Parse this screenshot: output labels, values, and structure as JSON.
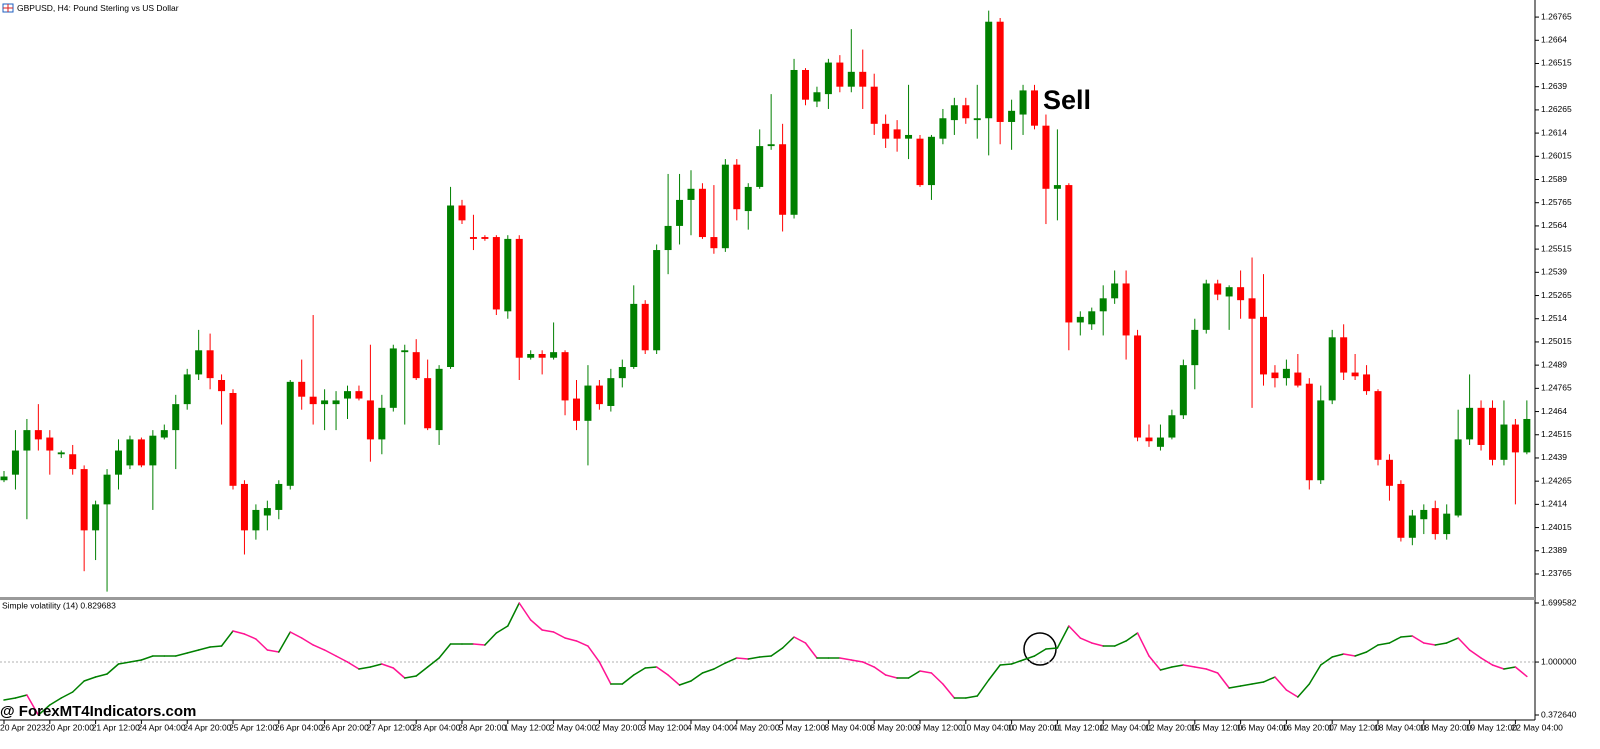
{
  "chart_data": [
    {
      "type": "candlestick",
      "title": "GBPUSD, H4: Pound Sterling vs US Dollar",
      "annotation": "Sell",
      "up_color": "#008000",
      "down_color": "#ff0000",
      "categories": [
        "20 Apr 2023",
        null,
        null,
        null,
        "20 Apr 20:00",
        null,
        null,
        null,
        "21 Apr 12:00",
        null,
        null,
        null,
        "24 Apr 04:00",
        null,
        null,
        null,
        "24 Apr 20:00",
        null,
        null,
        null,
        "25 Apr 12:00",
        null,
        null,
        null,
        "26 Apr 04:00",
        null,
        null,
        null,
        "26 Apr 20:00",
        null,
        null,
        null,
        "27 Apr 12:00",
        null,
        null,
        null,
        "28 Apr 04:00",
        null,
        null,
        null,
        "28 Apr 20:00",
        null,
        null,
        null,
        "1 May 12:00",
        null,
        null,
        null,
        "2 May 04:00",
        null,
        null,
        null,
        "2 May 20:00",
        null,
        null,
        null,
        "3 May 12:00",
        null,
        null,
        null,
        "4 May 04:00",
        null,
        null,
        null,
        "4 May 20:00",
        null,
        null,
        null,
        "5 May 12:00",
        null,
        null,
        null,
        "8 May 04:00",
        null,
        null,
        null,
        "8 May 20:00",
        null,
        null,
        null,
        "9 May 12:00",
        null,
        null,
        null,
        "10 May 04:00",
        null,
        null,
        null,
        "10 May 20:00",
        null,
        null,
        null,
        "11 May 12:00",
        null,
        null,
        null,
        "12 May 04:00",
        null,
        null,
        null,
        "12 May 20:00",
        null,
        null,
        null,
        "15 May 12:00",
        null,
        null,
        null,
        "16 May 04:00",
        null,
        null,
        null,
        "16 May 20:00",
        null,
        null,
        null,
        "17 May 12:00",
        null,
        null,
        null,
        "18 May 04:00",
        null,
        null,
        null,
        "18 May 20:00",
        null,
        null,
        null,
        "19 May 12:00",
        null,
        null,
        null,
        "22 May 04:00",
        null
      ],
      "open": [
        1.2427,
        1.243,
        1.2443,
        1.2454,
        1.245,
        1.2441,
        1.2441,
        1.2433,
        1.24,
        1.2414,
        1.243,
        1.2435,
        1.2449,
        1.2435,
        1.245,
        1.2454,
        1.2468,
        1.2484,
        1.2497,
        1.2481,
        1.2474,
        1.2425,
        1.24,
        1.2408,
        1.2411,
        1.2424,
        1.248,
        1.2472,
        1.2468,
        1.2468,
        1.2471,
        1.2475,
        1.247,
        1.2449,
        1.2466,
        1.2496,
        1.2496,
        1.2482,
        1.2454,
        1.2488,
        1.2575,
        1.2558,
        1.2558,
        1.2558,
        1.2518,
        1.2557,
        1.2493,
        1.2495,
        1.2493,
        1.2496,
        1.2471,
        1.2459,
        1.2478,
        1.2467,
        1.2482,
        1.2488,
        1.2522,
        1.2497,
        1.2551,
        1.2564,
        1.2578,
        1.2584,
        1.2558,
        1.2552,
        1.2597,
        1.2572,
        1.2585,
        1.2607,
        1.2608,
        1.257,
        1.2648,
        1.2631,
        1.2635,
        1.2652,
        1.2639,
        1.2647,
        1.2639,
        1.2619,
        1.2616,
        1.2611,
        1.2611,
        1.2586,
        1.2611,
        1.2621,
        1.2629,
        1.2621,
        1.2622,
        1.2674,
        1.262,
        1.2624,
        1.2637,
        1.2618,
        1.2584,
        1.2586,
        1.2512,
        1.2511,
        1.2518,
        1.2525,
        1.2533,
        1.2505,
        1.245,
        1.2445,
        1.245,
        1.2462,
        1.2489,
        1.2508,
        1.2533,
        1.2526,
        1.2531,
        1.2525,
        1.2515,
        1.2485,
        1.2482,
        1.2485,
        1.2479,
        1.2427,
        1.247,
        1.2504,
        1.2485,
        1.2484,
        1.2475,
        1.2438,
        1.2425,
        1.2396,
        1.2406,
        1.2412,
        1.2398,
        1.2408,
        1.2449,
        1.2466,
        1.2466,
        1.2438,
        1.2457,
        1.2442
      ],
      "high": [
        1.2432,
        1.2454,
        1.246,
        1.2468,
        1.2454,
        1.2443,
        1.2446,
        1.2435,
        1.2416,
        1.2433,
        1.2449,
        1.2451,
        1.245,
        1.2454,
        1.2457,
        1.2473,
        1.2487,
        1.2508,
        1.2506,
        1.2484,
        1.2476,
        1.2427,
        1.2414,
        1.2416,
        1.2427,
        1.2481,
        1.2492,
        1.2516,
        1.2476,
        1.2475,
        1.2478,
        1.2478,
        1.25,
        1.2473,
        1.25,
        1.25,
        1.2503,
        1.2492,
        1.2489,
        1.2585,
        1.2578,
        1.257,
        1.2559,
        1.2559,
        1.2559,
        1.2559,
        1.2497,
        1.2497,
        1.2512,
        1.2497,
        1.2481,
        1.2489,
        1.2481,
        1.2487,
        1.2492,
        1.2532,
        1.2524,
        1.2554,
        1.2592,
        1.2592,
        1.2594,
        1.2587,
        1.2586,
        1.26,
        1.26,
        1.2587,
        1.2616,
        1.2635,
        1.2619,
        1.2654,
        1.2649,
        1.2639,
        1.2654,
        1.2656,
        1.267,
        1.2659,
        1.2646,
        1.2624,
        1.2621,
        1.264,
        1.2613,
        1.2613,
        1.2627,
        1.2633,
        1.2633,
        1.264,
        1.268,
        1.2676,
        1.2632,
        1.264,
        1.264,
        1.2624,
        1.2616,
        1.2587,
        1.2518,
        1.252,
        1.2532,
        1.254,
        1.254,
        1.2508,
        1.2457,
        1.2457,
        1.2465,
        1.2492,
        1.2514,
        1.2535,
        1.2535,
        1.2532,
        1.254,
        1.2547,
        1.2538,
        1.2489,
        1.2492,
        1.2495,
        1.2482,
        1.2478,
        1.2508,
        1.2511,
        1.2495,
        1.2489,
        1.2476,
        1.2441,
        1.2427,
        1.2411,
        1.2414,
        1.2416,
        1.2414,
        1.2465,
        1.2484,
        1.247,
        1.247,
        1.247,
        1.246,
        1.247
      ],
      "low": [
        1.2426,
        1.2422,
        1.2406,
        1.2443,
        1.243,
        1.2439,
        1.243,
        1.2378,
        1.2384,
        1.2367,
        1.2422,
        1.2433,
        1.2434,
        1.2411,
        1.2449,
        1.2433,
        1.2465,
        1.2481,
        1.2476,
        1.2457,
        1.2422,
        1.2387,
        1.2395,
        1.24,
        1.2406,
        1.2422,
        1.2465,
        1.2457,
        1.2454,
        1.2454,
        1.246,
        1.247,
        1.2437,
        1.2441,
        1.2464,
        1.2457,
        1.2481,
        1.2454,
        1.2446,
        1.2487,
        1.2565,
        1.2551,
        1.2556,
        1.2516,
        1.2514,
        1.2481,
        1.2492,
        1.2484,
        1.2492,
        1.2462,
        1.2454,
        1.2435,
        1.2465,
        1.2464,
        1.2477,
        1.2487,
        1.2495,
        1.2495,
        1.2538,
        1.2554,
        1.2559,
        1.2557,
        1.2549,
        1.255,
        1.2567,
        1.2562,
        1.2584,
        1.2605,
        1.2561,
        1.2568,
        1.2629,
        1.2628,
        1.2627,
        1.2636,
        1.2636,
        1.2627,
        1.2613,
        1.2606,
        1.2604,
        1.26,
        1.2585,
        1.2578,
        1.2608,
        1.2613,
        1.2619,
        1.2611,
        1.2602,
        1.2608,
        1.2605,
        1.2613,
        1.2616,
        1.2565,
        1.2567,
        1.2497,
        1.2505,
        1.2508,
        1.2505,
        1.2522,
        1.2492,
        1.2448,
        1.2445,
        1.2443,
        1.2449,
        1.246,
        1.2476,
        1.2506,
        1.2524,
        1.2508,
        1.2514,
        1.2466,
        1.2478,
        1.2477,
        1.2478,
        1.2477,
        1.2422,
        1.2425,
        1.2468,
        1.2481,
        1.2481,
        1.2473,
        1.2435,
        1.2416,
        1.2394,
        1.2392,
        1.2398,
        1.2395,
        1.2395,
        1.2407,
        1.2446,
        1.2443,
        1.2435,
        1.2435,
        1.2414,
        1.2441
      ],
      "close": [
        1.2429,
        1.2443,
        1.2454,
        1.2449,
        1.2443,
        1.2442,
        1.2433,
        1.24,
        1.2414,
        1.243,
        1.2443,
        1.2449,
        1.2435,
        1.2451,
        1.2454,
        1.2468,
        1.2484,
        1.2497,
        1.2482,
        1.2475,
        1.2424,
        1.24,
        1.2411,
        1.2412,
        1.2425,
        1.248,
        1.2472,
        1.2468,
        1.247,
        1.247,
        1.2475,
        1.2471,
        1.2449,
        1.2466,
        1.2498,
        1.2497,
        1.2482,
        1.2455,
        1.2487,
        1.2575,
        1.2567,
        1.2557,
        1.2557,
        1.2519,
        1.2557,
        1.2493,
        1.2495,
        1.2493,
        1.2496,
        1.247,
        1.2459,
        1.2478,
        1.2468,
        1.2482,
        1.2488,
        1.2522,
        1.2497,
        1.2551,
        1.2564,
        1.2578,
        1.2584,
        1.2558,
        1.2552,
        1.2597,
        1.2573,
        1.2585,
        1.2607,
        1.2608,
        1.257,
        1.2648,
        1.2632,
        1.2636,
        1.2652,
        1.2639,
        1.2647,
        1.2639,
        1.2619,
        1.2611,
        1.2611,
        1.2613,
        1.2586,
        1.2612,
        1.2622,
        1.2629,
        1.2622,
        1.2622,
        1.2674,
        1.262,
        1.2626,
        1.2637,
        1.2618,
        1.2584,
        1.2586,
        1.2512,
        1.2515,
        1.2518,
        1.2525,
        1.2533,
        1.2505,
        1.245,
        1.2448,
        1.245,
        1.2462,
        1.2489,
        1.2508,
        1.2533,
        1.2527,
        1.2531,
        1.2524,
        1.2514,
        1.2484,
        1.2482,
        1.2487,
        1.2478,
        1.2427,
        1.247,
        1.2504,
        1.2485,
        1.2483,
        1.2475,
        1.2438,
        1.2424,
        1.2396,
        1.2408,
        1.2411,
        1.2398,
        1.2409,
        1.2449,
        1.2466,
        1.2446,
        1.2438,
        1.2457,
        1.2442,
        1.246
      ],
      "ylim": [
        1.23641,
        1.26857
      ],
      "yticks": [
        1.26765,
        1.2664,
        1.26515,
        1.2639,
        1.26265,
        1.2614,
        1.26015,
        1.2589,
        1.25765,
        1.2564,
        1.25515,
        1.2539,
        1.25265,
        1.2514,
        1.25015,
        1.2489,
        1.24765,
        1.2464,
        1.24515,
        1.2439,
        1.24265,
        1.2414,
        1.24015,
        1.2389,
        1.23765
      ]
    },
    {
      "type": "line",
      "title": "Simple volatility (14) 0.829683",
      "color": "#008000",
      "falling_color": "#ff1493",
      "values": [
        0.5503,
        0.574,
        0.6096,
        0.3726,
        0.4911,
        0.574,
        0.6451,
        0.7754,
        0.8228,
        0.8584,
        0.9769,
        1.0006,
        1.0243,
        1.0716,
        1.0716,
        1.0716,
        1.1071,
        1.1427,
        1.1783,
        1.1901,
        1.3679,
        1.3323,
        1.273,
        1.1427,
        1.119,
        1.356,
        1.2849,
        1.202,
        1.1427,
        1.0716,
        1.0006,
        0.9176,
        0.9413,
        0.9769,
        0.9295,
        0.811,
        0.8347,
        0.9413,
        1.048,
        1.2138,
        1.2138,
        1.2138,
        1.202,
        1.3442,
        1.4271,
        1.6996,
        1.4982,
        1.3797,
        1.356,
        1.2849,
        1.2494,
        1.1901,
        1.0006,
        0.7399,
        0.7399,
        0.8465,
        0.9295,
        0.9413,
        0.8465,
        0.728,
        0.7754,
        0.8702,
        0.9176,
        0.9887,
        1.048,
        1.0361,
        1.0598,
        1.0716,
        1.1664,
        1.2967,
        1.2257,
        1.048,
        1.048,
        1.048,
        1.0243,
        1.0006,
        0.9413,
        0.8465,
        0.811,
        0.811,
        0.894,
        0.8702,
        0.7399,
        0.574,
        0.574,
        0.5977,
        0.7873,
        0.965,
        0.9769,
        1.0243,
        1.0716,
        1.1546,
        1.1664,
        1.4271,
        1.2849,
        1.2257,
        1.1901,
        1.1901,
        1.2494,
        1.3442,
        1.0716,
        0.9058,
        0.9413,
        0.965,
        0.9413,
        0.9176,
        0.8702,
        0.6925,
        0.7162,
        0.7399,
        0.7636,
        0.8228,
        0.6688,
        0.5859,
        0.7399,
        0.965,
        1.0598,
        1.0953,
        1.0716,
        1.119,
        1.202,
        1.2257,
        1.2967,
        1.3086,
        1.2257,
        1.202,
        1.2257,
        1.2849,
        1.1427,
        1.048,
        0.965,
        0.9176,
        0.9413,
        0.8297
      ],
      "ylim": [
        0.37264,
        1.699582
      ],
      "yticks": [
        1.699582,
        {
          "value": 1,
          "label": "1.000000"
        },
        {
          "value": 0.37264,
          "label": "0.372640"
        }
      ],
      "levels": [
        1
      ]
    }
  ],
  "watermark": "@ ForexMT4Indicators.com"
}
